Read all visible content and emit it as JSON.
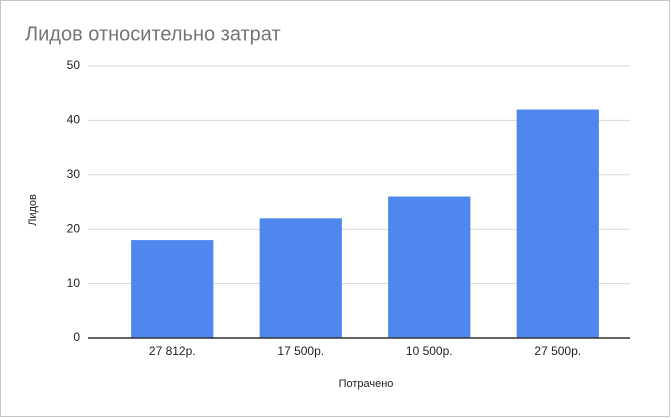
{
  "chart_data": {
    "type": "bar",
    "title": "Лидов относительно затрат",
    "y_label": "Лидов",
    "x_label": "Потрачено",
    "categories": [
      "27 812р.",
      "17 500р.",
      "10 500р.",
      "27 500р."
    ],
    "values": [
      18,
      22,
      26,
      42
    ],
    "color": "#4e87ee",
    "ylim": [
      0,
      50
    ],
    "yticks": [
      0,
      10,
      20,
      30,
      40,
      50
    ],
    "grid": true
  }
}
